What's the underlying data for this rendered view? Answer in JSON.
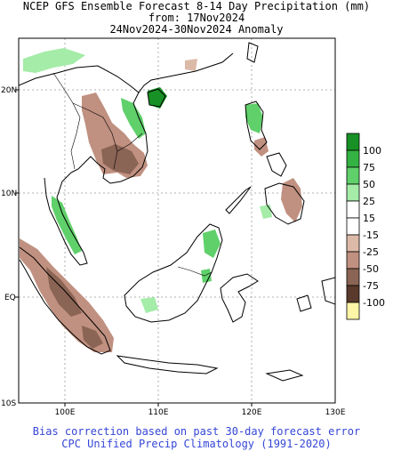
{
  "title": {
    "line1": "NCEP GFS Ensemble Forecast 8-14 Day Precipitation (mm)",
    "line2": "from: 17Nov2024",
    "line3": "24Nov2024-30Nov2024 Anomaly"
  },
  "axes": {
    "lat_labels": [
      "20N",
      "10N",
      "EQ",
      "10S"
    ],
    "lon_labels": [
      "100E",
      "110E",
      "120E",
      "130E"
    ]
  },
  "legend": [
    {
      "label": "100",
      "color": "#179125"
    },
    {
      "label": "75",
      "color": "#34b243"
    },
    {
      "label": "50",
      "color": "#5fd06a"
    },
    {
      "label": "25",
      "color": "#a4eca7"
    },
    {
      "label": "15",
      "color": "#ffffff"
    },
    {
      "label": "-15",
      "color": "#ffffff"
    },
    {
      "label": "-25",
      "color": "#dcbaa8"
    },
    {
      "label": "-50",
      "color": "#c09080"
    },
    {
      "label": "-75",
      "color": "#8a6454"
    },
    {
      "label": "-100",
      "color": "#5a3a2c"
    },
    {
      "label": "",
      "color": "#fff5a6"
    }
  ],
  "footer": {
    "line1": "Bias correction based on past 30-day forecast error",
    "line2": "CPC Unified Precip Climatology (1991-2020)"
  }
}
